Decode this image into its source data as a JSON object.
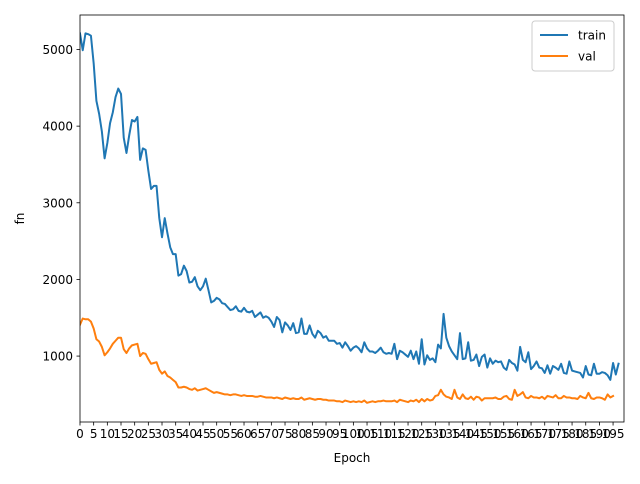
{
  "chart_data": {
    "type": "line",
    "title": "",
    "xlabel": "Epoch",
    "ylabel": "fn",
    "xlim": [
      0,
      199
    ],
    "ylim": [
      140,
      5450
    ],
    "x_ticks": [
      0,
      5,
      10,
      15,
      20,
      25,
      30,
      35,
      40,
      45,
      50,
      55,
      60,
      65,
      70,
      75,
      80,
      85,
      90,
      95,
      100,
      105,
      110,
      115,
      120,
      125,
      130,
      135,
      140,
      145,
      150,
      155,
      160,
      165,
      170,
      175,
      180,
      185,
      190,
      195
    ],
    "y_ticks": [
      1000,
      2000,
      3000,
      4000,
      5000
    ],
    "grid": false,
    "legend_position": "top-right",
    "colors": {
      "train": "#1f77b4",
      "val": "#ff7f0e"
    },
    "series": [
      {
        "name": "train",
        "values": [
          5210,
          4990,
          5210,
          5200,
          5180,
          4820,
          4330,
          4160,
          3930,
          3580,
          3780,
          4040,
          4180,
          4380,
          4490,
          4420,
          3850,
          3650,
          3880,
          4080,
          4060,
          4120,
          3560,
          3710,
          3690,
          3420,
          3180,
          3220,
          3220,
          2800,
          2550,
          2800,
          2600,
          2420,
          2330,
          2330,
          2050,
          2070,
          2180,
          2110,
          1960,
          1970,
          2030,
          1910,
          1860,
          1910,
          2010,
          1860,
          1700,
          1720,
          1760,
          1740,
          1690,
          1680,
          1640,
          1600,
          1610,
          1650,
          1590,
          1580,
          1630,
          1580,
          1570,
          1590,
          1510,
          1540,
          1570,
          1500,
          1520,
          1500,
          1450,
          1380,
          1510,
          1470,
          1310,
          1440,
          1400,
          1340,
          1430,
          1300,
          1310,
          1490,
          1290,
          1290,
          1400,
          1290,
          1240,
          1330,
          1300,
          1240,
          1260,
          1200,
          1200,
          1200,
          1160,
          1170,
          1110,
          1180,
          1130,
          1070,
          1110,
          1130,
          1100,
          1050,
          1180,
          1100,
          1060,
          1060,
          1040,
          1070,
          1110,
          1050,
          1030,
          1040,
          1030,
          1160,
          960,
          1070,
          1050,
          1020,
          990,
          1070,
          960,
          1060,
          900,
          1220,
          890,
          1010,
          950,
          970,
          920,
          1150,
          1100,
          1550,
          1240,
          1130,
          1060,
          1010,
          960,
          1300,
          960,
          970,
          1180,
          940,
          950,
          1020,
          870,
          990,
          1020,
          850,
          970,
          900,
          940,
          920,
          930,
          850,
          820,
          950,
          910,
          890,
          810,
          1120,
          950,
          920,
          1050,
          830,
          870,
          930,
          850,
          840,
          780,
          880,
          770,
          870,
          850,
          820,
          900,
          780,
          770,
          930,
          810,
          800,
          790,
          780,
          720,
          870,
          760,
          750,
          900,
          770,
          770,
          790,
          780,
          750,
          690,
          910,
          760,
          900
        ]
      },
      {
        "name": "val",
        "values": [
          1410,
          1490,
          1480,
          1480,
          1450,
          1360,
          1220,
          1190,
          1120,
          1010,
          1050,
          1100,
          1160,
          1200,
          1240,
          1240,
          1090,
          1040,
          1100,
          1140,
          1150,
          1160,
          1000,
          1040,
          1030,
          960,
          900,
          910,
          920,
          820,
          770,
          800,
          740,
          720,
          690,
          660,
          590,
          590,
          600,
          590,
          570,
          560,
          580,
          550,
          560,
          570,
          580,
          560,
          540,
          520,
          530,
          520,
          510,
          500,
          500,
          490,
          500,
          500,
          490,
          480,
          490,
          480,
          480,
          480,
          470,
          470,
          480,
          470,
          460,
          460,
          460,
          450,
          460,
          450,
          440,
          460,
          450,
          440,
          450,
          440,
          440,
          460,
          430,
          440,
          450,
          440,
          430,
          440,
          440,
          430,
          430,
          420,
          420,
          420,
          410,
          410,
          400,
          420,
          410,
          400,
          410,
          400,
          410,
          400,
          420,
          390,
          400,
          410,
          400,
          410,
          410,
          420,
          410,
          410,
          410,
          420,
          400,
          430,
          420,
          410,
          400,
          420,
          410,
          430,
          400,
          440,
          410,
          440,
          420,
          430,
          480,
          490,
          560,
          500,
          470,
          460,
          440,
          560,
          460,
          440,
          500,
          450,
          440,
          470,
          430,
          470,
          460,
          420,
          450,
          450,
          450,
          450,
          460,
          440,
          440,
          470,
          480,
          440,
          430,
          560,
          480,
          500,
          530,
          460,
          450,
          480,
          460,
          460,
          450,
          470,
          440,
          480,
          470,
          460,
          490,
          450,
          450,
          480,
          460,
          460,
          450,
          450,
          440,
          480,
          460,
          450,
          520,
          450,
          440,
          460,
          460,
          450,
          430,
          500,
          460,
          480
        ]
      }
    ]
  }
}
